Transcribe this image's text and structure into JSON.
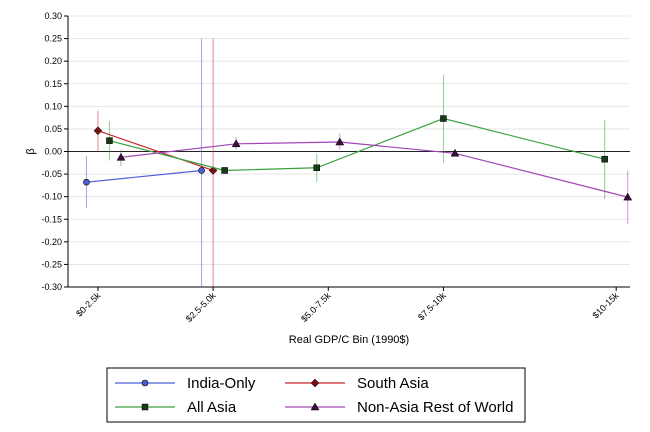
{
  "chart_data": {
    "type": "line",
    "title": "",
    "xlabel": "Real GDP/C Bin (1990$)",
    "ylabel": "β",
    "ylim": [
      -0.3,
      0.3
    ],
    "ytick_values": [
      0.3,
      0.25,
      0.2,
      0.15,
      0.1,
      0.05,
      0.0,
      -0.05,
      -0.1,
      -0.15,
      -0.2,
      -0.25,
      -0.3
    ],
    "ytick_labels": [
      "0.30",
      "0.25",
      "0.20",
      "0.15",
      "0.10",
      "0.05",
      "0.00",
      "-0.05",
      "-0.10",
      "-0.15",
      "-0.20",
      "-0.25",
      "-0.30"
    ],
    "x_axis_range": [
      0.6,
      12.8
    ],
    "xticks": [
      {
        "x": 1.25,
        "label": "$0-2.5k"
      },
      {
        "x": 3.75,
        "label": "$2.5-5.0k"
      },
      {
        "x": 6.25,
        "label": "$5.0-7.5k"
      },
      {
        "x": 8.75,
        "label": "$7.5-10k"
      },
      {
        "x": 12.5,
        "label": "$10-15k"
      }
    ],
    "zero_line": 0,
    "series": [
      {
        "name": "India-Only",
        "color": "#4b5fd6",
        "marker": "circle",
        "points": [
          {
            "x": 1.0,
            "y": -0.068,
            "lo": -0.125,
            "hi": -0.01
          },
          {
            "x": 3.5,
            "y": -0.042,
            "lo": -0.3,
            "hi": 0.25
          }
        ]
      },
      {
        "name": "South Asia",
        "color": "#c8282d",
        "marker": "diamond",
        "points": [
          {
            "x": 1.25,
            "y": 0.046,
            "lo": 0.0,
            "hi": 0.09
          },
          {
            "x": 3.75,
            "y": -0.042,
            "lo": -0.3,
            "hi": 0.25
          }
        ]
      },
      {
        "name": "All Asia",
        "color": "#3aa23c",
        "marker": "square",
        "points": [
          {
            "x": 1.5,
            "y": 0.024,
            "lo": -0.02,
            "hi": 0.068
          },
          {
            "x": 4.0,
            "y": -0.042,
            "lo": -0.045,
            "hi": -0.035
          },
          {
            "x": 6.0,
            "y": -0.036,
            "lo": -0.068,
            "hi": -0.005
          },
          {
            "x": 8.75,
            "y": 0.073,
            "lo": -0.025,
            "hi": 0.17
          },
          {
            "x": 12.25,
            "y": -0.017,
            "lo": -0.105,
            "hi": 0.07
          }
        ]
      },
      {
        "name": "Non-Asia Rest of World",
        "color": "#a347b7",
        "marker": "triangle",
        "points": [
          {
            "x": 1.75,
            "y": -0.013,
            "lo": -0.032,
            "hi": 0.004
          },
          {
            "x": 4.25,
            "y": 0.017,
            "lo": 0.004,
            "hi": 0.032
          },
          {
            "x": 6.5,
            "y": 0.021,
            "lo": 0.005,
            "hi": 0.04
          },
          {
            "x": 9.0,
            "y": -0.004,
            "lo": -0.01,
            "hi": 0.003
          },
          {
            "x": 12.75,
            "y": -0.101,
            "lo": -0.16,
            "hi": -0.042
          }
        ]
      }
    ],
    "legend": {
      "placement": "bottom-center",
      "entries": [
        "India-Only",
        "South Asia",
        "All Asia",
        "Non-Asia Rest of World"
      ]
    }
  }
}
